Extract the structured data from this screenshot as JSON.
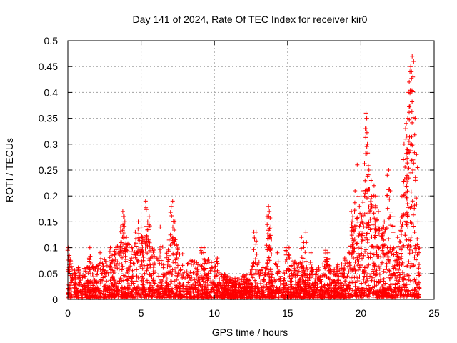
{
  "chart_data": {
    "type": "scatter",
    "title": "Day 141 of 2024, Rate Of TEC Index for receiver kir0",
    "xlabel": "GPS time / hours",
    "ylabel": "ROTI / TECUs",
    "xlim": [
      0,
      25
    ],
    "ylim": [
      0,
      0.5
    ],
    "grid": true,
    "marker": "+",
    "color": "#ff0000",
    "x_ticks": [
      "0",
      "5",
      "10",
      "15",
      "20",
      "25"
    ],
    "x_tick_values": [
      0,
      5,
      10,
      15,
      20,
      25
    ],
    "y_ticks": [
      "0",
      "0.05",
      "0.1",
      "0.15",
      "0.2",
      "0.25",
      "0.3",
      "0.35",
      "0.4",
      "0.45",
      "0.5"
    ],
    "y_tick_values": [
      0,
      0.05,
      0.1,
      0.15,
      0.2,
      0.25,
      0.3,
      0.35,
      0.4,
      0.45,
      0.5
    ],
    "envelope": {
      "x": [
        0,
        0.3,
        1.0,
        2.0,
        3.0,
        3.8,
        4.5,
        5.2,
        6.0,
        6.6,
        7.2,
        8.0,
        9.0,
        9.5,
        10.5,
        11.5,
        12.3,
        12.8,
        13.5,
        13.8,
        14.5,
        15.0,
        15.5,
        16.0,
        16.5,
        17.0,
        17.5,
        18.0,
        18.5,
        19.0,
        19.5,
        20.0,
        20.4,
        20.8,
        21.2,
        21.6,
        22.0,
        22.5,
        23.0,
        23.3,
        23.6,
        24.0
      ],
      "y": [
        0.09,
        0.07,
        0.06,
        0.07,
        0.09,
        0.12,
        0.1,
        0.13,
        0.1,
        0.11,
        0.12,
        0.08,
        0.07,
        0.09,
        0.05,
        0.04,
        0.05,
        0.08,
        0.06,
        0.1,
        0.05,
        0.06,
        0.08,
        0.07,
        0.06,
        0.06,
        0.08,
        0.06,
        0.07,
        0.07,
        0.14,
        0.16,
        0.18,
        0.2,
        0.14,
        0.15,
        0.11,
        0.09,
        0.17,
        0.22,
        0.2,
        0.1
      ]
    },
    "outliers": {
      "x": [
        0.05,
        0.1,
        1.5,
        2.2,
        2.9,
        3.6,
        3.75,
        3.85,
        4.0,
        4.6,
        4.8,
        5.0,
        5.1,
        5.3,
        5.45,
        5.55,
        6.3,
        7.05,
        7.15,
        7.3,
        9.1,
        9.3,
        10.2,
        12.7,
        12.85,
        13.6,
        13.7,
        13.75,
        13.85,
        14.3,
        14.9,
        15.1,
        15.95,
        16.1,
        16.25,
        16.6,
        17.6,
        17.75,
        18.9,
        19.35,
        19.45,
        19.6,
        19.75,
        19.9,
        20.05,
        20.15,
        20.3,
        20.35,
        20.4,
        20.45,
        20.55,
        20.7,
        20.9,
        21.0,
        21.2,
        21.5,
        21.6,
        21.8,
        21.9,
        22.0,
        22.2,
        22.5,
        22.7,
        22.8,
        22.9,
        22.95,
        23.05,
        23.1,
        23.15,
        23.2,
        23.25,
        23.3,
        23.35,
        23.4,
        23.45,
        23.5,
        23.55,
        23.6,
        23.7,
        23.8,
        23.9
      ],
      "y": [
        0.1,
        0.085,
        0.1,
        0.09,
        0.1,
        0.14,
        0.17,
        0.16,
        0.12,
        0.13,
        0.15,
        0.14,
        0.12,
        0.19,
        0.15,
        0.16,
        0.14,
        0.18,
        0.19,
        0.15,
        0.1,
        0.1,
        0.08,
        0.13,
        0.13,
        0.16,
        0.18,
        0.17,
        0.14,
        0.09,
        0.1,
        0.1,
        0.12,
        0.11,
        0.13,
        0.09,
        0.095,
        0.09,
        0.08,
        0.17,
        0.16,
        0.21,
        0.26,
        0.18,
        0.16,
        0.21,
        0.33,
        0.36,
        0.35,
        0.3,
        0.25,
        0.23,
        0.22,
        0.2,
        0.17,
        0.14,
        0.15,
        0.24,
        0.25,
        0.21,
        0.16,
        0.12,
        0.15,
        0.2,
        0.27,
        0.3,
        0.33,
        0.34,
        0.29,
        0.35,
        0.4,
        0.42,
        0.44,
        0.45,
        0.44,
        0.47,
        0.43,
        0.46,
        0.35,
        0.28,
        0.15
      ]
    }
  }
}
